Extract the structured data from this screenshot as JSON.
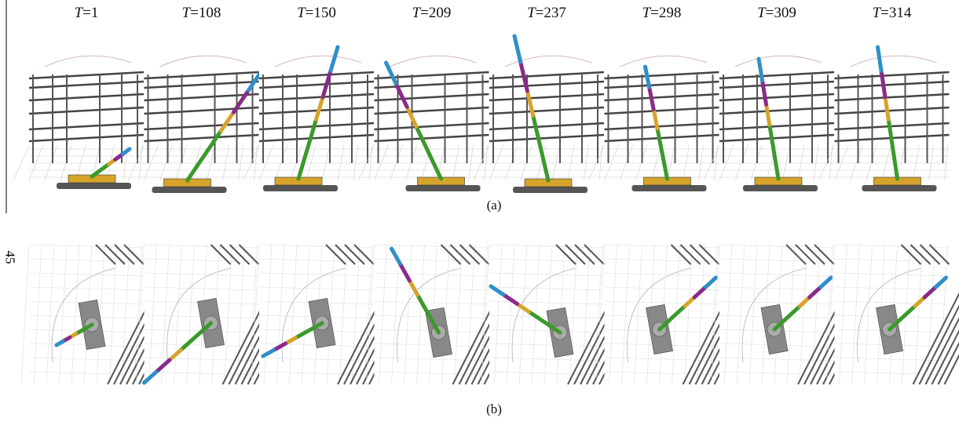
{
  "figure": {
    "frames": [
      {
        "label": "T=1"
      },
      {
        "label": "T=108"
      },
      {
        "label": "T=150"
      },
      {
        "label": "T=209"
      },
      {
        "label": "T=237"
      },
      {
        "label": "T=298"
      },
      {
        "label": "T=309"
      },
      {
        "label": "T=314"
      }
    ],
    "caption_a": "(a)",
    "caption_b": "(b)",
    "page_number": "45"
  }
}
